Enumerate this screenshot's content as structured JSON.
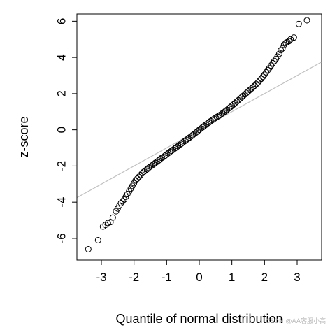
{
  "chart_data": {
    "type": "scatter",
    "title": "",
    "xlabel": "Quantile of normal distribution",
    "ylabel": "z-score",
    "xlim": [
      -3.75,
      3.75
    ],
    "ylim": [
      -7.2,
      6.4
    ],
    "x_ticks": [
      -3,
      -2,
      -1,
      0,
      1,
      2,
      3
    ],
    "y_ticks": [
      -6,
      -4,
      -2,
      0,
      2,
      4,
      6
    ],
    "x_tick_labels": [
      "-3",
      "-2",
      "-1",
      "0",
      "1",
      "2",
      "3"
    ],
    "y_tick_labels": [
      "-6",
      "-4",
      "-2",
      "0",
      "2",
      "4",
      "6"
    ],
    "reference_line": {
      "slope": 1.0,
      "intercept": 0.0,
      "color": "#c0c0c0"
    },
    "marker": "open-circle",
    "grid": false,
    "legend": "none",
    "series": [
      {
        "points": [
          [
            -3.4,
            -6.6
          ],
          [
            -3.1,
            -6.1
          ],
          [
            -2.95,
            -5.35
          ],
          [
            -2.87,
            -5.25
          ],
          [
            -2.8,
            -5.15
          ],
          [
            -2.72,
            -5.1
          ],
          [
            -2.65,
            -4.85
          ],
          [
            -2.55,
            -4.5
          ],
          [
            -2.5,
            -4.35
          ],
          [
            -2.45,
            -4.2
          ],
          [
            -2.4,
            -4.05
          ],
          [
            -2.35,
            -3.95
          ],
          [
            -2.3,
            -3.85
          ],
          [
            -2.25,
            -3.7
          ],
          [
            -2.2,
            -3.55
          ],
          [
            -2.15,
            -3.4
          ],
          [
            -2.1,
            -3.25
          ],
          [
            -2.05,
            -3.1
          ],
          [
            -2.0,
            -2.95
          ],
          [
            -1.95,
            -2.8
          ],
          [
            -1.9,
            -2.7
          ],
          [
            -1.85,
            -2.6
          ],
          [
            -1.8,
            -2.5
          ],
          [
            -1.75,
            -2.4
          ],
          [
            -1.7,
            -2.32
          ],
          [
            -1.65,
            -2.25
          ],
          [
            -1.6,
            -2.18
          ],
          [
            -1.55,
            -2.1
          ],
          [
            -1.5,
            -2.03
          ],
          [
            -1.45,
            -1.97
          ],
          [
            -1.4,
            -1.9
          ],
          [
            -1.35,
            -1.83
          ],
          [
            -1.3,
            -1.77
          ],
          [
            -1.25,
            -1.7
          ],
          [
            -1.2,
            -1.62
          ],
          [
            -1.15,
            -1.55
          ],
          [
            -1.1,
            -1.5
          ],
          [
            -1.05,
            -1.43
          ],
          [
            -1.0,
            -1.36
          ],
          [
            -0.95,
            -1.29
          ],
          [
            -0.9,
            -1.22
          ],
          [
            -0.85,
            -1.16
          ],
          [
            -0.8,
            -1.1
          ],
          [
            -0.75,
            -1.03
          ],
          [
            -0.7,
            -0.97
          ],
          [
            -0.65,
            -0.9
          ],
          [
            -0.6,
            -0.83
          ],
          [
            -0.55,
            -0.77
          ],
          [
            -0.5,
            -0.7
          ],
          [
            -0.45,
            -0.63
          ],
          [
            -0.4,
            -0.56
          ],
          [
            -0.35,
            -0.5
          ],
          [
            -0.3,
            -0.43
          ],
          [
            -0.25,
            -0.36
          ],
          [
            -0.2,
            -0.29
          ],
          [
            -0.15,
            -0.22
          ],
          [
            -0.1,
            -0.15
          ],
          [
            -0.05,
            -0.08
          ],
          [
            0.0,
            0.0
          ],
          [
            0.05,
            0.07
          ],
          [
            0.1,
            0.14
          ],
          [
            0.15,
            0.21
          ],
          [
            0.2,
            0.28
          ],
          [
            0.25,
            0.35
          ],
          [
            0.3,
            0.41
          ],
          [
            0.35,
            0.48
          ],
          [
            0.4,
            0.54
          ],
          [
            0.45,
            0.6
          ],
          [
            0.5,
            0.66
          ],
          [
            0.55,
            0.72
          ],
          [
            0.6,
            0.77
          ],
          [
            0.65,
            0.83
          ],
          [
            0.7,
            0.9
          ],
          [
            0.75,
            0.96
          ],
          [
            0.8,
            1.03
          ],
          [
            0.85,
            1.1
          ],
          [
            0.9,
            1.18
          ],
          [
            0.95,
            1.25
          ],
          [
            1.0,
            1.32
          ],
          [
            1.05,
            1.4
          ],
          [
            1.1,
            1.48
          ],
          [
            1.15,
            1.56
          ],
          [
            1.2,
            1.64
          ],
          [
            1.25,
            1.72
          ],
          [
            1.3,
            1.8
          ],
          [
            1.35,
            1.88
          ],
          [
            1.4,
            1.96
          ],
          [
            1.45,
            2.04
          ],
          [
            1.5,
            2.12
          ],
          [
            1.55,
            2.2
          ],
          [
            1.6,
            2.28
          ],
          [
            1.65,
            2.36
          ],
          [
            1.7,
            2.44
          ],
          [
            1.75,
            2.53
          ],
          [
            1.8,
            2.62
          ],
          [
            1.85,
            2.72
          ],
          [
            1.9,
            2.82
          ],
          [
            1.95,
            2.93
          ],
          [
            2.0,
            3.05
          ],
          [
            2.05,
            3.18
          ],
          [
            2.1,
            3.3
          ],
          [
            2.15,
            3.42
          ],
          [
            2.2,
            3.55
          ],
          [
            2.25,
            3.68
          ],
          [
            2.3,
            3.8
          ],
          [
            2.35,
            3.92
          ],
          [
            2.4,
            4.05
          ],
          [
            2.45,
            4.2
          ],
          [
            2.5,
            4.4
          ],
          [
            2.55,
            4.5
          ],
          [
            2.6,
            4.7
          ],
          [
            2.65,
            4.8
          ],
          [
            2.7,
            4.85
          ],
          [
            2.75,
            4.9
          ],
          [
            2.8,
            5.0
          ],
          [
            2.9,
            5.1
          ],
          [
            3.05,
            5.85
          ],
          [
            3.3,
            6.05
          ]
        ]
      }
    ]
  },
  "watermark": "CSDN @AA客服小高"
}
